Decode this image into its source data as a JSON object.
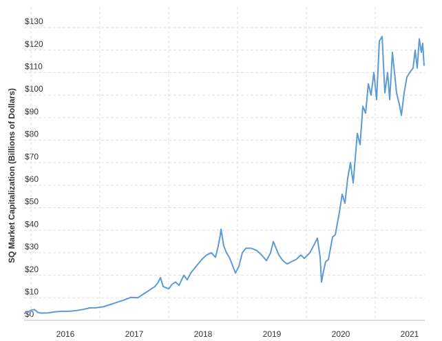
{
  "chart_data": {
    "type": "line",
    "y_label": "SQ Market Capitalization (Billions of Dollars)",
    "x": [
      2015.9,
      2015.95,
      2016.0,
      2016.05,
      2016.1,
      2016.15,
      2016.25,
      2016.35,
      2016.45,
      2016.55,
      2016.65,
      2016.75,
      2016.85,
      2016.95,
      2017.05,
      2017.15,
      2017.25,
      2017.35,
      2017.45,
      2017.55,
      2017.6,
      2017.7,
      2017.8,
      2017.85,
      2017.88,
      2017.92,
      2018.0,
      2018.05,
      2018.1,
      2018.15,
      2018.22,
      2018.27,
      2018.32,
      2018.4,
      2018.48,
      2018.55,
      2018.62,
      2018.68,
      2018.72,
      2018.75,
      2018.76,
      2018.8,
      2018.84,
      2018.88,
      2018.92,
      2018.97,
      2019.02,
      2019.07,
      2019.12,
      2019.2,
      2019.28,
      2019.35,
      2019.42,
      2019.48,
      2019.52,
      2019.56,
      2019.6,
      2019.66,
      2019.72,
      2019.78,
      2019.85,
      2019.92,
      2019.97,
      2020.05,
      2020.12,
      2020.16,
      2020.2,
      2020.22,
      2020.25,
      2020.28,
      2020.32,
      2020.38,
      2020.42,
      2020.48,
      2020.52,
      2020.56,
      2020.6,
      2020.64,
      2020.68,
      2020.74,
      2020.78,
      2020.82,
      2020.86,
      2020.9,
      2020.94,
      2020.98,
      2021.02,
      2021.06,
      2021.1,
      2021.14,
      2021.18,
      2021.21,
      2021.25,
      2021.28,
      2021.31,
      2021.35,
      2021.38,
      2021.42,
      2021.46,
      2021.5,
      2021.55,
      2021.58,
      2021.61,
      2021.64,
      2021.67,
      2021.69,
      2021.71
    ],
    "series": [
      {
        "color": "#5b9bd5",
        "values": [
          3,
          3.5,
          4.5,
          4.8,
          3.5,
          3.2,
          3.3,
          3.8,
          4,
          4,
          4.3,
          4.8,
          5.5,
          5.6,
          6,
          7,
          8,
          9,
          10.2,
          10,
          11,
          13,
          15,
          17,
          19,
          15,
          14,
          16,
          17,
          15.5,
          20,
          18,
          21,
          24,
          27,
          29,
          30,
          28,
          33,
          38,
          40.5,
          33,
          30,
          28,
          25,
          21,
          24,
          30,
          32,
          32,
          31,
          29,
          26.5,
          30,
          35,
          32,
          29,
          26.5,
          25,
          26,
          27,
          29,
          27.5,
          30,
          34,
          36.5,
          28,
          17,
          22,
          26,
          27,
          37,
          38,
          48,
          56,
          52,
          63,
          70,
          61,
          83,
          78,
          95,
          92,
          105,
          100,
          110,
          98,
          124,
          126,
          101,
          110,
          98,
          119,
          110,
          101,
          96,
          91,
          101,
          108,
          110,
          112,
          120,
          112,
          125,
          119,
          123,
          113
        ]
      }
    ],
    "xlim": [
      2015.9,
      2021.72
    ],
    "xticks": [
      {
        "value": 2016,
        "label": "2016"
      },
      {
        "value": 2017,
        "label": "2017"
      },
      {
        "value": 2018,
        "label": "2018"
      },
      {
        "value": 2019,
        "label": "2019"
      },
      {
        "value": 2020,
        "label": "2020"
      },
      {
        "value": 2021,
        "label": "2021"
      }
    ],
    "ylim": [
      0,
      130
    ],
    "yticks": [
      {
        "value": 0,
        "label": "$0"
      },
      {
        "value": 10,
        "label": "$10"
      },
      {
        "value": 20,
        "label": "$20"
      },
      {
        "value": 30,
        "label": "$30"
      },
      {
        "value": 40,
        "label": "$40"
      },
      {
        "value": 50,
        "label": "$50"
      },
      {
        "value": 60,
        "label": "$60"
      },
      {
        "value": 70,
        "label": "$70"
      },
      {
        "value": 80,
        "label": "$80"
      },
      {
        "value": 90,
        "label": "$90"
      },
      {
        "value": 100,
        "label": "$100"
      },
      {
        "value": 110,
        "label": "$110"
      },
      {
        "value": 120,
        "label": "$120"
      },
      {
        "value": 130,
        "label": "$130"
      }
    ],
    "grid": true
  }
}
